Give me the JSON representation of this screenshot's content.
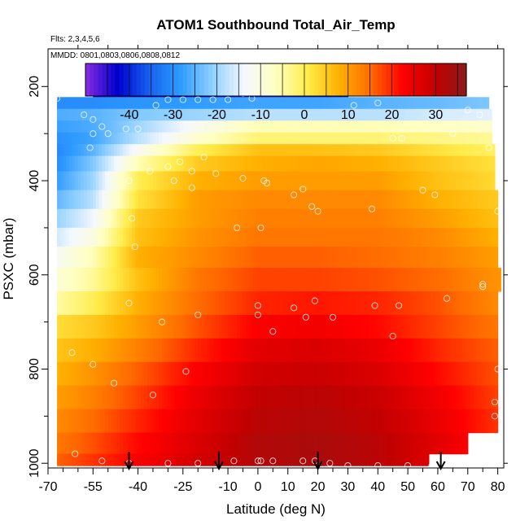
{
  "chart_data": {
    "type": "heatmap",
    "title": "ATOM1 Southbound Total_Air_Temp",
    "flights_label": "Flts: 2,3,4,5,6",
    "dates_label": "MMDD: 0801,0803,0806,0808,0812",
    "xlabel": "Latitude (deg N)",
    "ylabel": "PSXC (mbar)",
    "xlim": [
      -70,
      82
    ],
    "ylim": [
      1010,
      120
    ],
    "y_reversed": true,
    "x_ticks": [
      -70,
      -55,
      -40,
      -25,
      -10,
      0,
      10,
      20,
      30,
      40,
      50,
      60,
      70,
      80
    ],
    "x_minor_ticks": [
      -65,
      -60,
      -50,
      -45,
      -35,
      -30,
      -20,
      -15,
      -5,
      5,
      15,
      25,
      35,
      45,
      55,
      65,
      75
    ],
    "y_ticks": [
      200,
      400,
      600,
      800,
      1000
    ],
    "colorbar": {
      "range": [
        -50,
        37
      ],
      "ticks": [
        -40,
        -30,
        -20,
        -10,
        0,
        10,
        20,
        30
      ],
      "colors": [
        "#8a2be2",
        "#0000cd",
        "#1560f0",
        "#2e9bff",
        "#8fd0ff",
        "#f5f8ff",
        "#ffffc0",
        "#ffec4a",
        "#ffb000",
        "#ff6a00",
        "#ff0000",
        "#c40000",
        "#8b1a1a"
      ]
    },
    "pressure_levels_mbar": [
      210,
      235,
      260,
      285,
      310,
      335,
      360,
      400,
      440,
      480,
      520,
      560,
      610,
      660,
      710,
      760,
      810,
      860,
      910,
      960,
      1000
    ],
    "level_lat_ranges": [
      [
        -55,
        30
      ],
      [
        -67,
        77
      ],
      [
        -67,
        78
      ],
      [
        -67,
        78
      ],
      [
        -67,
        78
      ],
      [
        -67,
        79
      ],
      [
        -67,
        79
      ],
      [
        -67,
        79
      ],
      [
        -67,
        80
      ],
      [
        -67,
        80
      ],
      [
        -67,
        80
      ],
      [
        -67,
        80
      ],
      [
        -67,
        81
      ],
      [
        -67,
        80
      ],
      [
        -67,
        80
      ],
      [
        -67,
        80
      ],
      [
        -67,
        80
      ],
      [
        -67,
        80
      ],
      [
        -67,
        80
      ],
      [
        -67,
        70
      ],
      [
        -67,
        57
      ]
    ],
    "temperature_anchor_lats": [
      -70,
      -55,
      -40,
      -20,
      0,
      20,
      40,
      60,
      80
    ],
    "temperature_degC": [
      [
        -45,
        -44,
        -43,
        -43,
        -42,
        -42,
        -41,
        -40,
        -40
      ],
      [
        -30,
        -30,
        -29,
        -28,
        -27,
        -27,
        -25,
        -24,
        -22
      ],
      [
        -26,
        -25,
        -22,
        -20,
        -18,
        -18,
        -18,
        -16,
        -15
      ],
      [
        -28,
        -26,
        -20,
        -12,
        -6,
        -6,
        -6,
        -7,
        -8
      ],
      [
        -30,
        -27,
        -18,
        -8,
        -2,
        -2,
        -2,
        -3,
        -4
      ],
      [
        -32,
        -25,
        -12,
        0,
        6,
        6,
        5,
        2,
        -1
      ],
      [
        -32,
        -22,
        -6,
        5,
        8,
        9,
        8,
        5,
        2
      ],
      [
        -30,
        -20,
        0,
        8,
        10,
        10,
        10,
        6,
        3
      ],
      [
        -26,
        -18,
        2,
        10,
        12,
        12,
        12,
        8,
        5
      ],
      [
        -22,
        -14,
        5,
        10,
        13,
        13,
        13,
        10,
        6
      ],
      [
        -18,
        -10,
        6,
        11,
        14,
        14,
        14,
        12,
        8
      ],
      [
        -14,
        -6,
        8,
        12,
        16,
        16,
        15,
        13,
        10
      ],
      [
        -10,
        -4,
        6,
        14,
        18,
        18,
        17,
        15,
        11
      ],
      [
        -6,
        0,
        8,
        15,
        20,
        21,
        20,
        17,
        12
      ],
      [
        2,
        5,
        10,
        17,
        23,
        24,
        22,
        18,
        14
      ],
      [
        5,
        8,
        13,
        20,
        26,
        27,
        25,
        20,
        16
      ],
      [
        7,
        11,
        16,
        23,
        28,
        29,
        27,
        22,
        17
      ],
      [
        9,
        13,
        18,
        25,
        30,
        31,
        29,
        24,
        18
      ],
      [
        11,
        15,
        20,
        26,
        31,
        32,
        30,
        25,
        19
      ],
      [
        13,
        17,
        22,
        27,
        32,
        33,
        31,
        26,
        20
      ],
      [
        15,
        19,
        23,
        28,
        32,
        33,
        31,
        26,
        20
      ]
    ],
    "sample_points": [
      [
        -68,
        225
      ],
      [
        -67,
        225
      ],
      [
        -58,
        260
      ],
      [
        -55,
        270
      ],
      [
        -52,
        285
      ],
      [
        -50,
        300
      ],
      [
        -56,
        330
      ],
      [
        -55,
        300
      ],
      [
        -44,
        290
      ],
      [
        -43,
        400
      ],
      [
        -42,
        480
      ],
      [
        -41,
        540
      ],
      [
        -40,
        290
      ],
      [
        -30,
        370
      ],
      [
        -22,
        380
      ],
      [
        -18,
        350
      ],
      [
        -34,
        240
      ],
      [
        -30,
        228
      ],
      [
        -25,
        228
      ],
      [
        -20,
        228
      ],
      [
        -15,
        228
      ],
      [
        -10,
        228
      ],
      [
        -5,
        215
      ],
      [
        -2,
        225
      ],
      [
        -43,
        195
      ],
      [
        -36,
        380
      ],
      [
        -26,
        360
      ],
      [
        -28,
        400
      ],
      [
        -22,
        415
      ],
      [
        -14,
        385
      ],
      [
        -5,
        395
      ],
      [
        2,
        400
      ],
      [
        3,
        405
      ],
      [
        12,
        430
      ],
      [
        15,
        418
      ],
      [
        18,
        455
      ],
      [
        20,
        465
      ],
      [
        -7,
        500
      ],
      [
        1,
        500
      ],
      [
        28,
        180
      ],
      [
        35,
        210
      ],
      [
        40,
        235
      ],
      [
        38,
        460
      ],
      [
        45,
        310
      ],
      [
        48,
        310
      ],
      [
        55,
        420
      ],
      [
        59,
        430
      ],
      [
        65,
        300
      ],
      [
        70,
        250
      ],
      [
        74,
        260
      ],
      [
        77,
        330
      ],
      [
        80,
        465
      ],
      [
        75,
        620
      ],
      [
        63,
        650
      ],
      [
        47,
        665
      ],
      [
        39,
        665
      ],
      [
        25,
        690
      ],
      [
        16,
        690
      ],
      [
        12,
        670
      ],
      [
        19,
        655
      ],
      [
        5,
        720
      ],
      [
        0,
        665
      ],
      [
        0,
        685
      ],
      [
        -20,
        685
      ],
      [
        -32,
        700
      ],
      [
        -43,
        660
      ],
      [
        -62,
        765
      ],
      [
        -55,
        790
      ],
      [
        -48,
        830
      ],
      [
        -35,
        855
      ],
      [
        -24,
        805
      ],
      [
        -61,
        980
      ],
      [
        -52,
        995
      ],
      [
        -43,
        1000
      ],
      [
        -30,
        1000
      ],
      [
        -20,
        1000
      ],
      [
        -8,
        995
      ],
      [
        0,
        995
      ],
      [
        1,
        995
      ],
      [
        5,
        995
      ],
      [
        15,
        995
      ],
      [
        19,
        995
      ],
      [
        24,
        1000
      ],
      [
        30,
        1005
      ],
      [
        40,
        1005
      ],
      [
        50,
        1005
      ],
      [
        58,
        1005
      ],
      [
        45,
        730
      ],
      [
        80,
        800
      ],
      [
        79,
        870
      ],
      [
        79,
        900
      ],
      [
        32,
        240
      ],
      [
        75,
        625
      ]
    ],
    "flight_markers_lat": [
      -43,
      -13,
      20,
      61
    ]
  }
}
